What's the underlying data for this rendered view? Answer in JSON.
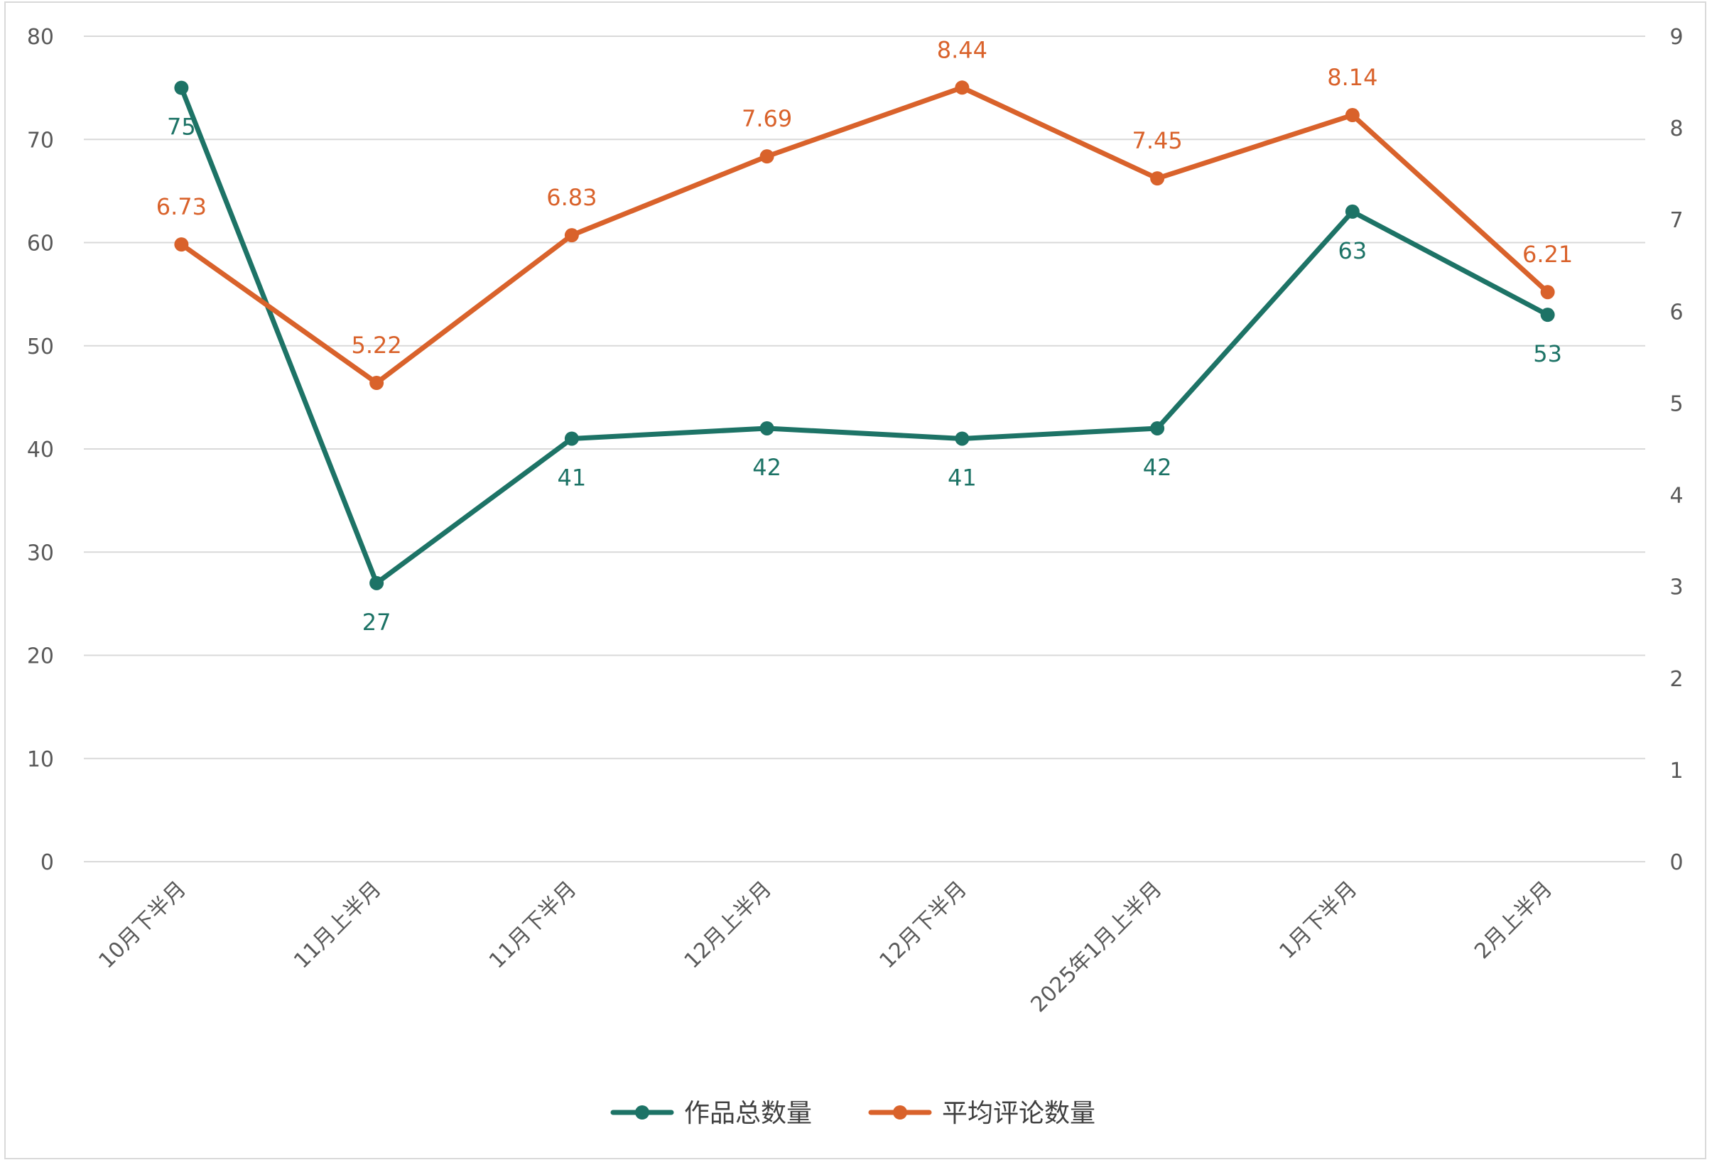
{
  "chart_data": {
    "type": "line",
    "categories": [
      "10月下半月",
      "11月上半月",
      "11月下半月",
      "12月上半月",
      "12月下半月",
      "2025年1月上半月",
      "1月下半月",
      "2月上半月"
    ],
    "series": [
      {
        "name": "作品总数量",
        "axis": "left",
        "color": "#1d7366",
        "values": [
          75,
          27,
          41,
          42,
          41,
          42,
          63,
          53
        ],
        "labels": [
          "75",
          "27",
          "41",
          "42",
          "41",
          "42",
          "63",
          "53"
        ]
      },
      {
        "name": "平均评论数量",
        "axis": "right",
        "color": "#d9622b",
        "values": [
          6.73,
          5.22,
          6.83,
          7.69,
          8.44,
          7.45,
          8.14,
          6.21
        ],
        "labels": [
          "6.73",
          "5.22",
          "6.83",
          "7.69",
          "8.44",
          "7.45",
          "8.14",
          "6.21"
        ]
      }
    ],
    "y_left": {
      "min": 0,
      "max": 80,
      "step": 10,
      "ticks": [
        "0",
        "10",
        "20",
        "30",
        "40",
        "50",
        "60",
        "70",
        "80"
      ]
    },
    "y_right": {
      "min": 0,
      "max": 9,
      "step": 1,
      "ticks": [
        "0",
        "1",
        "2",
        "3",
        "4",
        "5",
        "6",
        "7",
        "8",
        "9"
      ]
    },
    "grid": true,
    "legend": "bottom-center",
    "title": "",
    "xlabel": "",
    "ylabel": ""
  }
}
